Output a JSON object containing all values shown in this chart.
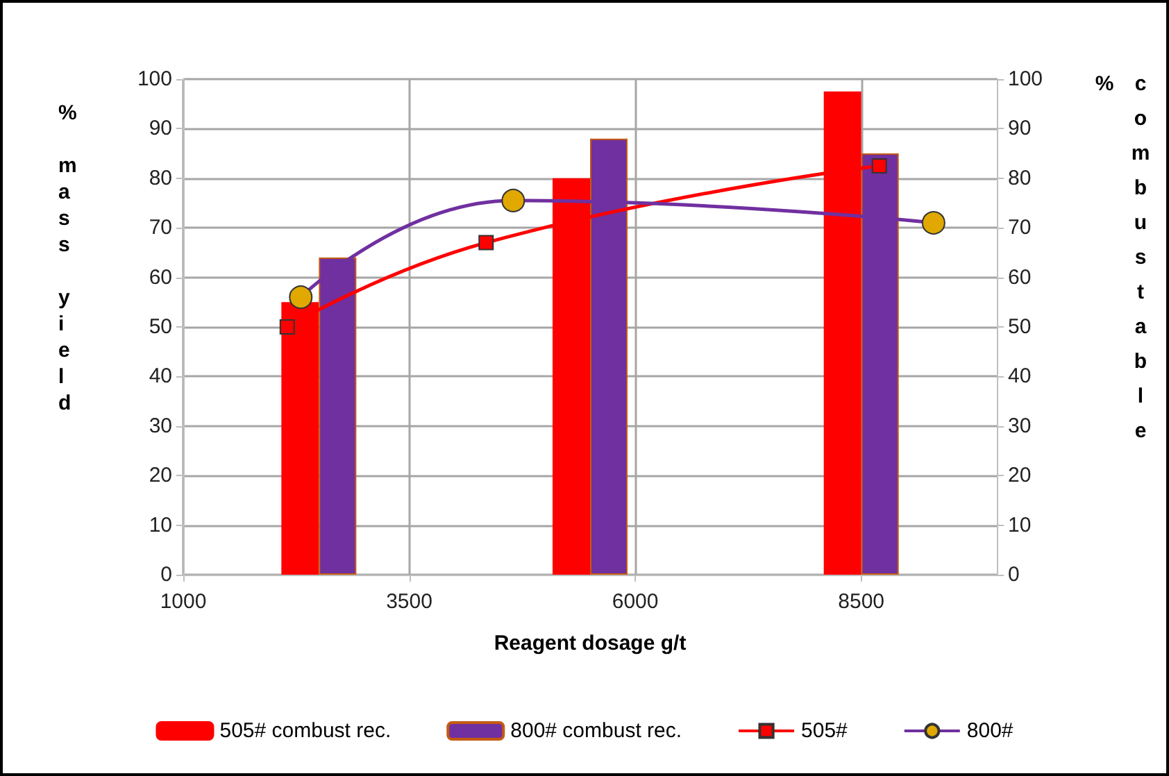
{
  "chart_data": {
    "type": "bar",
    "xlabel": "Reagent dosage g/t",
    "ylabel": "% mass yield",
    "y2label": "% combustable rec.",
    "xlim": [
      1000,
      10000
    ],
    "xticks": [
      1000,
      3500,
      6000,
      8500
    ],
    "ylim": [
      0,
      100
    ],
    "yticks": [
      0,
      10,
      20,
      30,
      40,
      50,
      60,
      70,
      80,
      90,
      100
    ],
    "y2lim": [
      0,
      100
    ],
    "y2ticks": [
      0,
      10,
      20,
      30,
      40,
      50,
      60,
      70,
      80,
      90,
      100
    ],
    "grid": true,
    "legend": "bottom",
    "series": [
      {
        "name": "505# combust rec.",
        "axis": "y2",
        "color": "#ff0000",
        "x": [
          2500,
          5500,
          8500
        ],
        "values": [
          55,
          80,
          97.5
        ]
      },
      {
        "name": "800# combust rec.",
        "axis": "y2",
        "color": "#7030a0",
        "x": [
          2500,
          5500,
          8500
        ],
        "values": [
          64,
          88,
          85
        ]
      },
      {
        "name": "505#",
        "type": "line",
        "color": "#ff0000",
        "marker": "square",
        "x": [
          2150,
          4350,
          8700
        ],
        "values": [
          50,
          67,
          82.5
        ]
      },
      {
        "name": "800#",
        "type": "line",
        "color": "#7030a0",
        "marker": "circle",
        "x": [
          2300,
          4650,
          9300
        ],
        "values": [
          56,
          75.5,
          71
        ]
      }
    ]
  }
}
